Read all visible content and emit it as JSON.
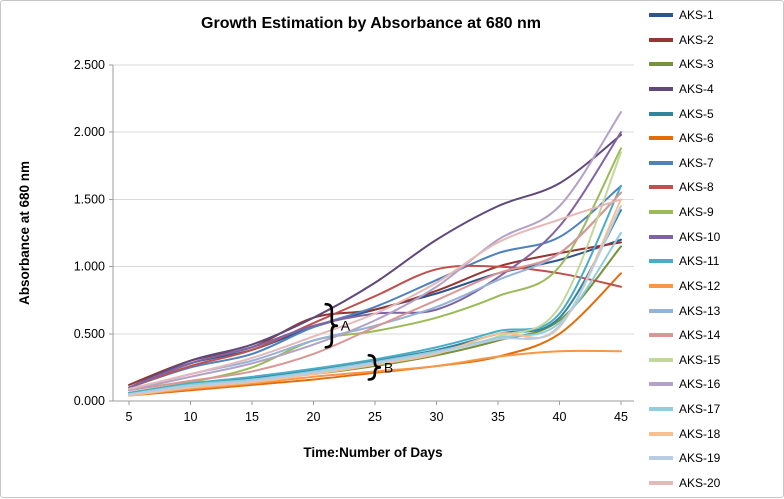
{
  "chart_data": {
    "type": "line",
    "title": "Growth Estimation by Absorbance at 680 nm",
    "xlabel": "Time:Number of Days",
    "ylabel": "Absorbance at 680 nm",
    "x": [
      5,
      10,
      15,
      20,
      25,
      30,
      35,
      40,
      45
    ],
    "ylim": [
      0,
      2.5
    ],
    "ytick_step": 0.5,
    "ytick_labels": [
      "0.000",
      "0.500",
      "1.000",
      "1.500",
      "2.000",
      "2.500"
    ],
    "grid": true,
    "legend_position": "right",
    "series": [
      {
        "name": "AKS-1",
        "color": "#31538F",
        "values": [
          0.1,
          0.28,
          0.38,
          0.55,
          0.68,
          0.8,
          0.95,
          1.05,
          1.2
        ]
      },
      {
        "name": "AKS-2",
        "color": "#943634",
        "values": [
          0.12,
          0.3,
          0.4,
          0.62,
          0.68,
          0.82,
          1.0,
          1.1,
          1.18
        ]
      },
      {
        "name": "AKS-3",
        "color": "#76923C",
        "values": [
          0.05,
          0.12,
          0.16,
          0.2,
          0.26,
          0.34,
          0.45,
          0.6,
          1.15
        ]
      },
      {
        "name": "AKS-4",
        "color": "#5F497A",
        "values": [
          0.1,
          0.3,
          0.42,
          0.62,
          0.88,
          1.2,
          1.45,
          1.62,
          1.98
        ]
      },
      {
        "name": "AKS-5",
        "color": "#31849B",
        "values": [
          0.06,
          0.13,
          0.17,
          0.23,
          0.3,
          0.38,
          0.5,
          0.62,
          1.42
        ]
      },
      {
        "name": "AKS-6",
        "color": "#E36C0A",
        "values": [
          0.04,
          0.08,
          0.12,
          0.16,
          0.21,
          0.26,
          0.33,
          0.5,
          0.95
        ]
      },
      {
        "name": "AKS-7",
        "color": "#4F81BD",
        "values": [
          0.1,
          0.25,
          0.35,
          0.55,
          0.7,
          0.9,
          1.1,
          1.22,
          1.6
        ]
      },
      {
        "name": "AKS-8",
        "color": "#C0504D",
        "values": [
          0.1,
          0.26,
          0.38,
          0.58,
          0.78,
          0.98,
          1.0,
          0.95,
          0.85
        ]
      },
      {
        "name": "AKS-9",
        "color": "#9BBB59",
        "values": [
          0.06,
          0.14,
          0.25,
          0.45,
          0.52,
          0.62,
          0.78,
          1.0,
          1.88
        ]
      },
      {
        "name": "AKS-10",
        "color": "#8064A2",
        "values": [
          0.1,
          0.28,
          0.4,
          0.56,
          0.65,
          0.68,
          0.92,
          1.3,
          2.0
        ]
      },
      {
        "name": "AKS-11",
        "color": "#4BACC6",
        "values": [
          0.06,
          0.13,
          0.18,
          0.24,
          0.31,
          0.4,
          0.52,
          0.65,
          1.6
        ]
      },
      {
        "name": "AKS-12",
        "color": "#F79646",
        "values": [
          0.04,
          0.09,
          0.13,
          0.18,
          0.22,
          0.26,
          0.33,
          0.37,
          0.37
        ]
      },
      {
        "name": "AKS-13",
        "color": "#95B3D7",
        "values": [
          0.08,
          0.2,
          0.3,
          0.45,
          0.56,
          0.7,
          0.9,
          1.1,
          1.55
        ]
      },
      {
        "name": "AKS-14",
        "color": "#D99694",
        "values": [
          0.08,
          0.15,
          0.22,
          0.35,
          0.55,
          0.75,
          0.95,
          1.1,
          1.55
        ]
      },
      {
        "name": "AKS-15",
        "color": "#C3D69B",
        "values": [
          0.05,
          0.11,
          0.15,
          0.21,
          0.28,
          0.36,
          0.48,
          0.7,
          1.85
        ]
      },
      {
        "name": "AKS-16",
        "color": "#B2A2C7",
        "values": [
          0.08,
          0.18,
          0.28,
          0.42,
          0.6,
          0.85,
          1.2,
          1.45,
          2.15
        ]
      },
      {
        "name": "AKS-17",
        "color": "#92CDDC",
        "values": [
          0.05,
          0.12,
          0.16,
          0.22,
          0.29,
          0.37,
          0.47,
          0.58,
          1.25
        ]
      },
      {
        "name": "AKS-18",
        "color": "#FABF8F",
        "values": [
          0.04,
          0.1,
          0.14,
          0.2,
          0.27,
          0.35,
          0.5,
          0.55,
          1.5
        ]
      },
      {
        "name": "AKS-19",
        "color": "#B8CCE4",
        "values": [
          0.05,
          0.11,
          0.15,
          0.21,
          0.28,
          0.36,
          0.46,
          0.56,
          1.45
        ]
      },
      {
        "name": "AKS-20",
        "color": "#E5B9B7",
        "values": [
          0.09,
          0.2,
          0.32,
          0.48,
          0.65,
          0.88,
          1.18,
          1.35,
          1.5
        ]
      }
    ],
    "annotations": [
      {
        "label": "A",
        "day": 21,
        "range": [
          0.4,
          0.72
        ]
      },
      {
        "label": "B",
        "day": 24.5,
        "range": [
          0.16,
          0.34
        ]
      }
    ]
  }
}
